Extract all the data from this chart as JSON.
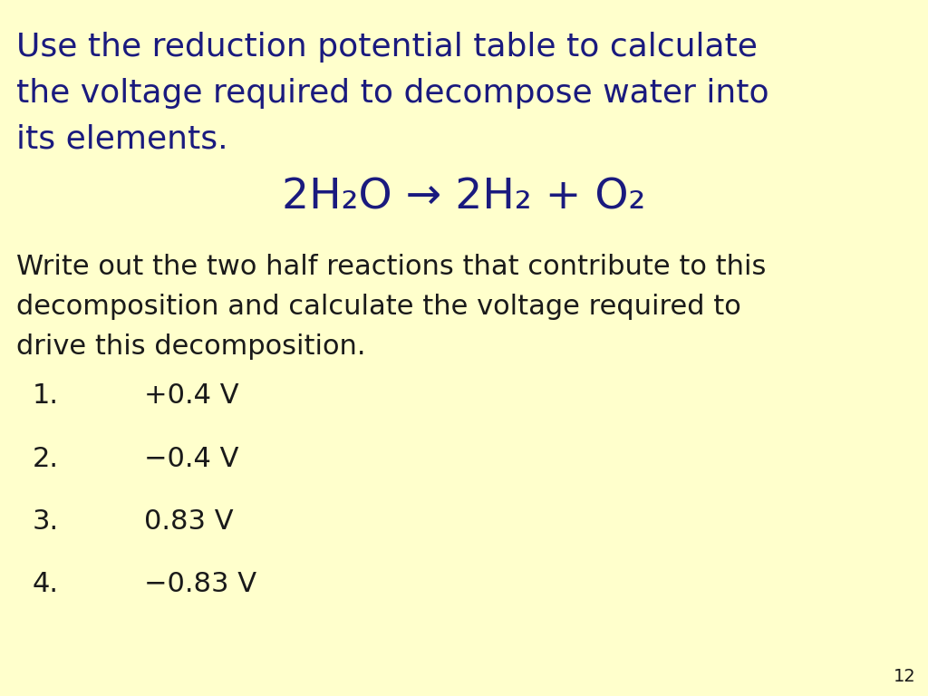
{
  "background_color": "#FFFFCC",
  "title_color": "#1A1A7E",
  "body_color": "#1A1A1A",
  "list_color": "#1A1A1A",
  "page_number": "12",
  "title_text_line1": "Use the reduction potential table to calculate",
  "title_text_line2": "the voltage required to decompose water into",
  "title_text_line3": "its elements.",
  "equation": "2H₂O → 2H₂ + O₂",
  "body_line1": "Write out the two half reactions that contribute to this",
  "body_line2": "decomposition and calculate the voltage required to",
  "body_line3": "drive this decomposition.",
  "items": [
    {
      "num": "1.",
      "val": "+0.4 V"
    },
    {
      "num": "2.",
      "val": "−0.4 V"
    },
    {
      "num": "3.",
      "val": "0.83 V"
    },
    {
      "num": "4.",
      "val": "−0.83 V"
    }
  ],
  "title_fontsize": 26,
  "equation_fontsize": 34,
  "body_fontsize": 22,
  "list_fontsize": 22,
  "page_num_fontsize": 14
}
